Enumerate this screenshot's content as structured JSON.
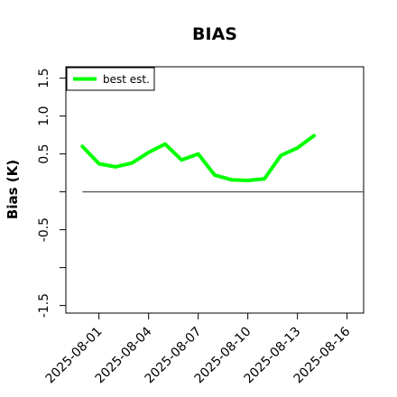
{
  "chart_data": {
    "type": "line",
    "title": "BIAS",
    "xlabel": "",
    "ylabel": "Bias (K)",
    "ylim": [
      -1.6,
      1.65
    ],
    "xlim": [
      "2025-07-30",
      "2025-08-17"
    ],
    "yticks": [
      {
        "value": -1.5,
        "label": "-1.5"
      },
      {
        "value": -1.0,
        "label": ""
      },
      {
        "value": -0.5,
        "label": "-0.5"
      },
      {
        "value": 0.0,
        "label": ""
      },
      {
        "value": 0.5,
        "label": "0.5"
      },
      {
        "value": 1.0,
        "label": "1.0"
      },
      {
        "value": 1.5,
        "label": "1.5"
      }
    ],
    "xticks": [
      {
        "value": "2025-08-01",
        "label": "2025-08-01"
      },
      {
        "value": "2025-08-04",
        "label": "2025-08-04"
      },
      {
        "value": "2025-08-07",
        "label": "2025-08-07"
      },
      {
        "value": "2025-08-10",
        "label": "2025-08-10"
      },
      {
        "value": "2025-08-13",
        "label": "2025-08-13"
      },
      {
        "value": "2025-08-16",
        "label": "2025-08-16"
      }
    ],
    "reference_line": {
      "y": 0.0,
      "x_from": "2025-07-31",
      "x_to": "2025-08-17",
      "color": "#555555"
    },
    "legend": {
      "position": "top-left"
    },
    "series": [
      {
        "name": "best est.",
        "color": "#00ff00",
        "x": [
          "2025-07-31",
          "2025-08-01",
          "2025-08-02",
          "2025-08-03",
          "2025-08-04",
          "2025-08-05",
          "2025-08-06",
          "2025-08-07",
          "2025-08-08",
          "2025-08-09",
          "2025-08-10",
          "2025-08-11",
          "2025-08-12",
          "2025-08-13",
          "2025-08-14"
        ],
        "y": [
          0.6,
          0.37,
          0.33,
          0.38,
          0.52,
          0.63,
          0.42,
          0.5,
          0.22,
          0.16,
          0.15,
          0.17,
          0.48,
          0.58,
          0.74
        ]
      }
    ]
  }
}
